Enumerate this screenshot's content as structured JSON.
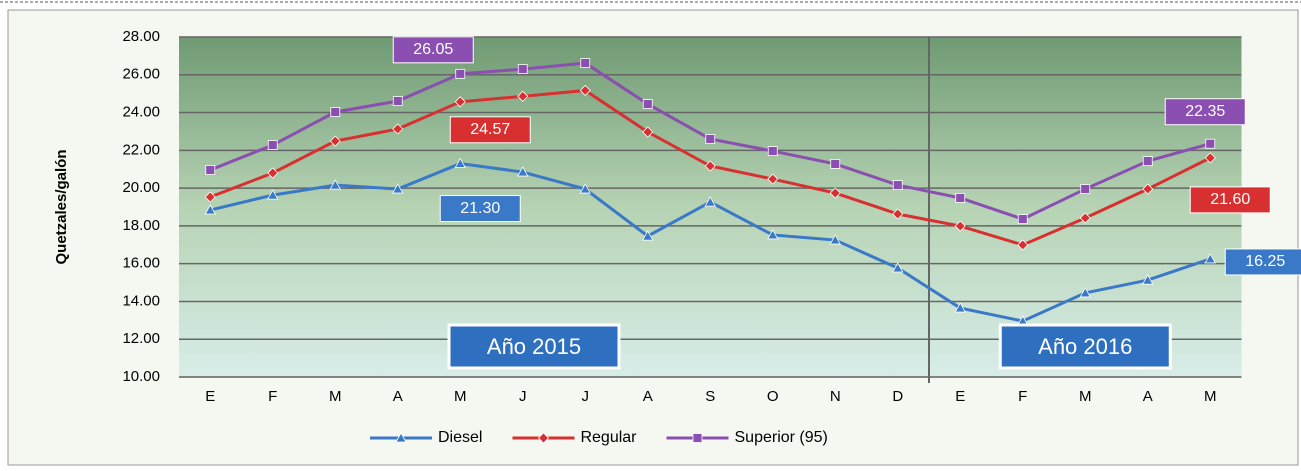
{
  "chart_data": {
    "type": "line",
    "y_label": "Quetzales/galón",
    "categories": [
      "E",
      "F",
      "M",
      "A",
      "M",
      "J",
      "J",
      "A",
      "S",
      "O",
      "N",
      "D",
      "E",
      "F",
      "M",
      "A",
      "M"
    ],
    "series": [
      {
        "name": "Diesel",
        "color": "#3a78c8",
        "marker": "triangle",
        "values": [
          18.84,
          19.63,
          20.16,
          19.95,
          21.3,
          20.85,
          19.95,
          17.46,
          19.26,
          17.52,
          17.25,
          15.77,
          13.65,
          12.96,
          14.45,
          15.13,
          16.25
        ],
        "value_labels": [
          null,
          null,
          null,
          null,
          "21.30",
          null,
          null,
          null,
          null,
          null,
          null,
          null,
          null,
          null,
          null,
          null,
          "16.25"
        ]
      },
      {
        "name": "Regular",
        "color": "#d83030",
        "marker": "diamond",
        "values": [
          19.53,
          20.8,
          22.49,
          23.13,
          24.57,
          24.86,
          25.17,
          22.97,
          21.17,
          20.48,
          19.74,
          18.63,
          17.99,
          16.99,
          18.42,
          19.95,
          21.6
        ],
        "value_labels": [
          null,
          null,
          null,
          null,
          "24.57",
          null,
          null,
          null,
          null,
          null,
          null,
          null,
          null,
          null,
          null,
          null,
          "21.60"
        ]
      },
      {
        "name": "Superior (95)",
        "color": "#8a4fb0",
        "marker": "square",
        "values": [
          20.96,
          22.28,
          24.03,
          24.61,
          26.05,
          26.3,
          26.62,
          24.45,
          22.6,
          21.96,
          21.28,
          20.16,
          19.48,
          18.36,
          19.95,
          21.43,
          22.35
        ],
        "value_labels": [
          null,
          null,
          null,
          null,
          "26.05",
          null,
          null,
          null,
          null,
          null,
          null,
          null,
          null,
          null,
          null,
          null,
          "22.35"
        ]
      }
    ],
    "annotations": [
      "Año 2015",
      "Año 2016"
    ],
    "ylim": [
      10,
      28
    ],
    "yticks": [
      {
        "value": 10,
        "label": "10.00"
      },
      {
        "value": 12,
        "label": "12.00"
      },
      {
        "value": 14,
        "label": "14.00"
      },
      {
        "value": 16,
        "label": "16.00"
      },
      {
        "value": 18,
        "label": "18.00"
      },
      {
        "value": 20,
        "label": "20.00"
      },
      {
        "value": 22,
        "label": "22.00"
      },
      {
        "value": 24,
        "label": "24.00"
      },
      {
        "value": 26,
        "label": "26.00"
      },
      {
        "value": 28,
        "label": "28.00"
      }
    ],
    "grid": true,
    "legend": "bottom"
  }
}
